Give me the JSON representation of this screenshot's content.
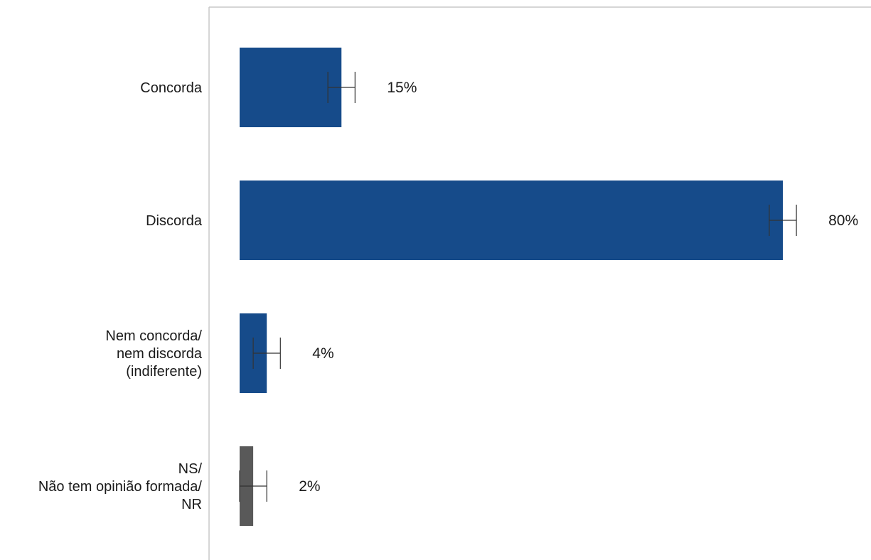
{
  "chart_data": {
    "type": "bar",
    "orientation": "horizontal",
    "categories": [
      [
        "Concorda"
      ],
      [
        "Discorda"
      ],
      [
        "Nem concorda/",
        "nem discorda",
        "(indiferente)"
      ],
      [
        "NS/",
        "Não tem opinião formada/",
        "NR"
      ]
    ],
    "values": [
      15,
      80,
      4,
      2
    ],
    "value_labels": [
      "15%",
      "80%",
      "4%",
      "2%"
    ],
    "error_bars": [
      [
        13,
        17
      ],
      [
        78,
        82
      ],
      [
        2,
        6
      ],
      [
        0,
        4
      ]
    ],
    "bar_colors": [
      "#164b8a",
      "#164b8a",
      "#164b8a",
      "#595959"
    ],
    "error_bar_color": "#333333",
    "axis_color": "#c8c8c8",
    "xlim": [
      0,
      80
    ],
    "title": "",
    "xlabel": "",
    "ylabel": "",
    "grid": false,
    "legend": "none"
  }
}
